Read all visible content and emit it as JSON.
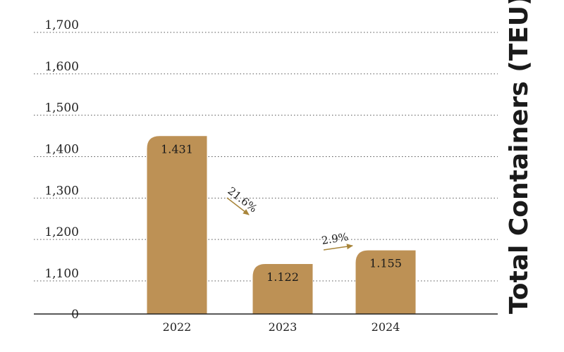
{
  "chart_data": {
    "type": "bar",
    "categories": [
      "2022",
      "2023",
      "2024"
    ],
    "values": [
      1431,
      1122,
      1155
    ],
    "data_labels": [
      "1.431",
      "1.122",
      "1.155"
    ],
    "y_ticks": [
      {
        "value": 0,
        "label": "0"
      },
      {
        "value": 1100,
        "label": "1,100"
      },
      {
        "value": 1200,
        "label": "1,200"
      },
      {
        "value": 1300,
        "label": "1,300"
      },
      {
        "value": 1400,
        "label": "1,400"
      },
      {
        "value": 1500,
        "label": "1,500"
      },
      {
        "value": 1600,
        "label": "1,600"
      },
      {
        "value": 1700,
        "label": "1,700"
      }
    ],
    "ylabel": "Total Containers (TEU)",
    "xlabel": "",
    "title": "",
    "axis_break": true,
    "ylim": [
      0,
      1700
    ],
    "grid": true,
    "annotations": [
      {
        "text": "21.6%",
        "direction": "down",
        "between": [
          "2022",
          "2023"
        ]
      },
      {
        "text": "2.9%",
        "direction": "up",
        "between": [
          "2023",
          "2024"
        ]
      }
    ],
    "colors": {
      "bar": "#BD9155",
      "arrow": "#A8853A",
      "text": "#1a1a1a"
    }
  }
}
